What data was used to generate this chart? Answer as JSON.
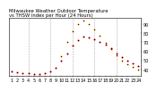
{
  "title": "Milwaukee Weather Outdoor Temperature vs THSW Index per Hour (24 Hours)",
  "background_color": "#ffffff",
  "grid_color": "#aaaaaa",
  "ylim": [
    33,
    97
  ],
  "xlim": [
    0.5,
    24.5
  ],
  "yticks": [
    40,
    50,
    60,
    70,
    80,
    90
  ],
  "ytick_labels": [
    "40",
    "50",
    "60",
    "70",
    "80",
    "90"
  ],
  "xticks": [
    1,
    2,
    3,
    4,
    5,
    6,
    7,
    8,
    9,
    10,
    11,
    12,
    13,
    14,
    15,
    16,
    17,
    18,
    19,
    20,
    21,
    22,
    23,
    24
  ],
  "xtick_labels": [
    "1",
    "2",
    "3",
    "4",
    "5",
    "6",
    "7",
    "8",
    "9",
    "1",
    "1",
    "1",
    "1",
    "1",
    "1",
    "1",
    "1",
    "1",
    "1",
    "2",
    "2",
    "2",
    "2",
    "2"
  ],
  "hours": [
    1,
    2,
    3,
    4,
    5,
    6,
    7,
    8,
    9,
    10,
    11,
    12,
    13,
    14,
    15,
    16,
    17,
    18,
    19,
    20,
    21,
    22,
    23,
    24
  ],
  "temp": [
    38,
    37,
    36,
    36,
    35,
    35,
    36,
    38,
    42,
    50,
    58,
    66,
    72,
    76,
    75,
    73,
    70,
    67,
    63,
    58,
    54,
    50,
    47,
    44
  ],
  "thsw": [
    null,
    null,
    null,
    null,
    null,
    null,
    null,
    null,
    null,
    55,
    70,
    82,
    90,
    94,
    90,
    84,
    77,
    69,
    62,
    56,
    50,
    46,
    43,
    40
  ],
  "temp_color": "#dd0000",
  "thsw_color": "#ff8800",
  "black_color": "#000000",
  "marker_size": 1.5,
  "vgrid_positions": [
    4,
    8,
    12,
    16,
    20
  ],
  "title_fontsize": 3.8,
  "tick_fontsize": 3.5
}
